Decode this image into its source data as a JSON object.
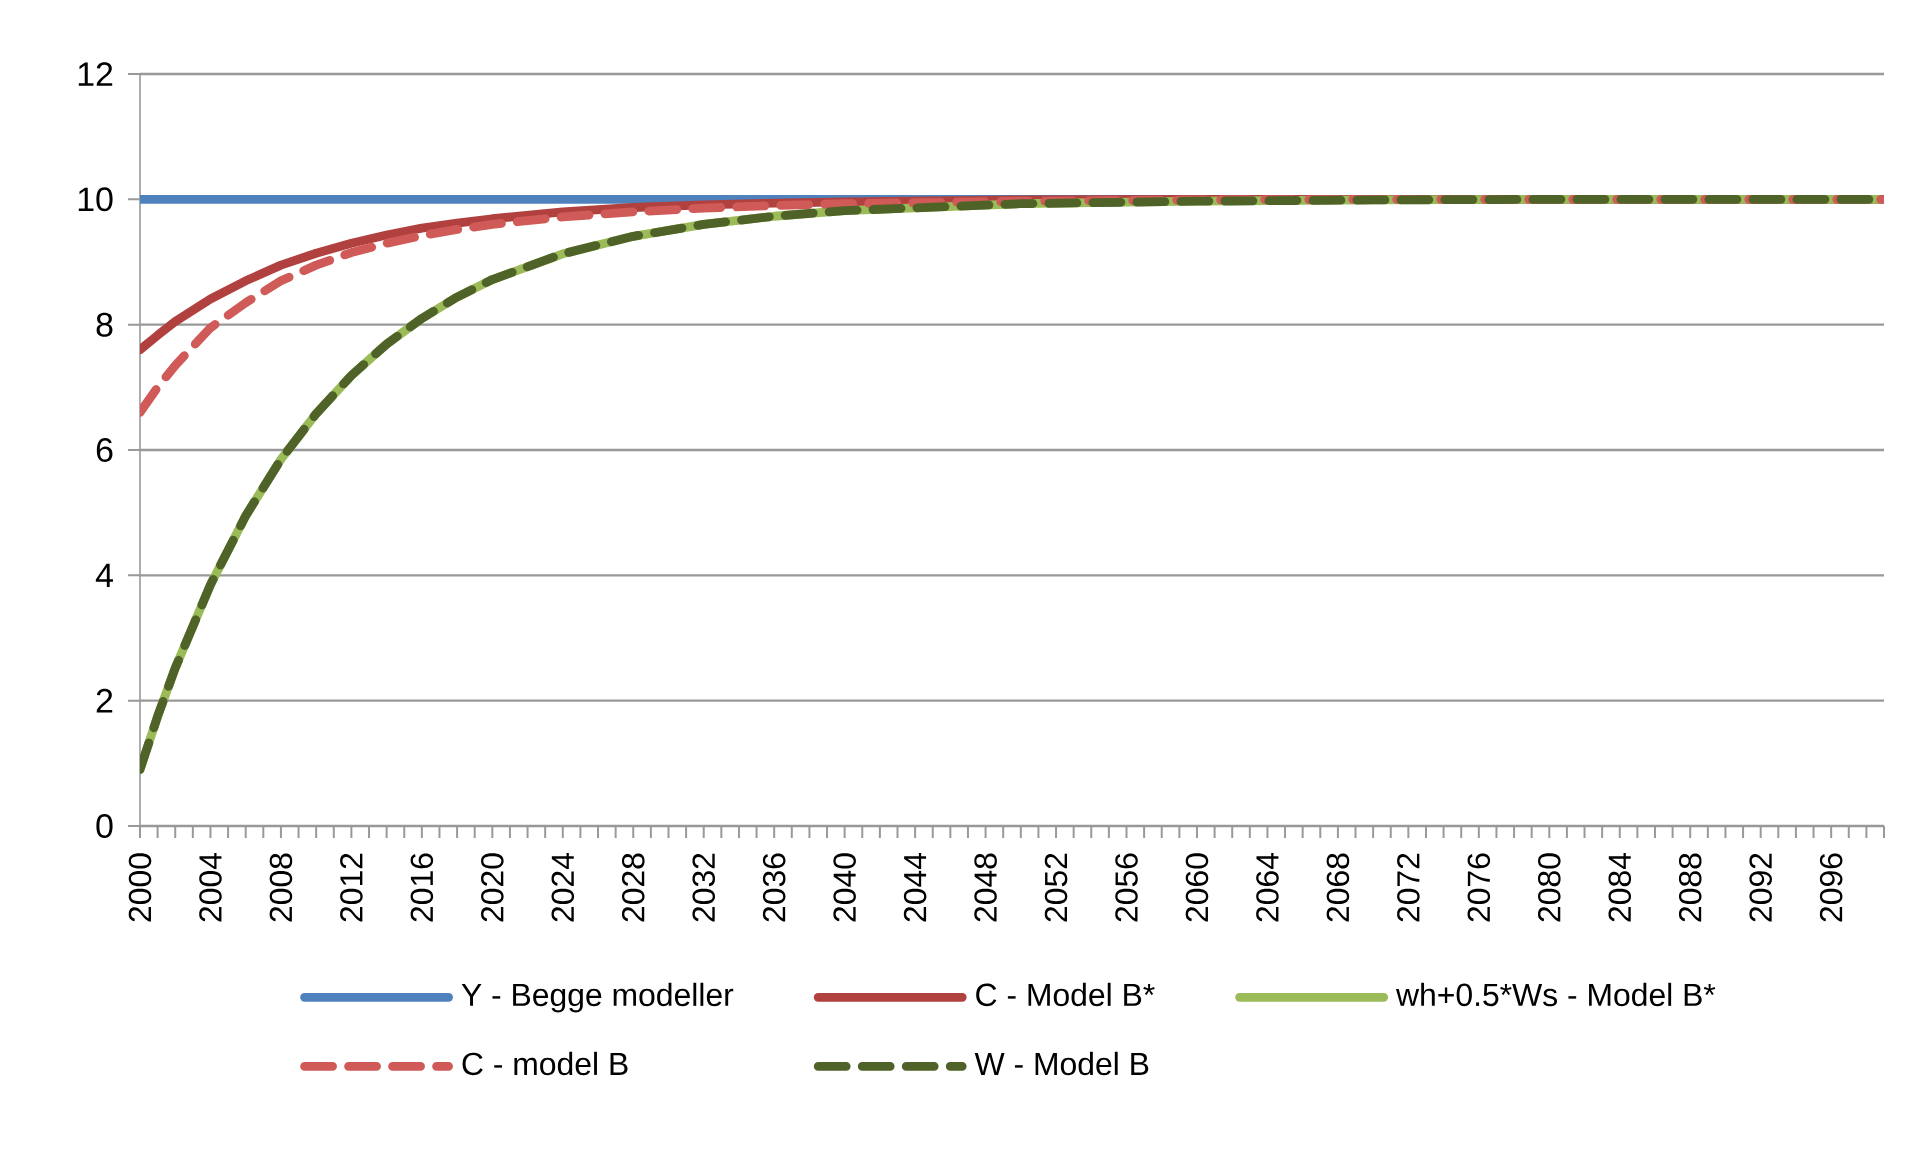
{
  "chart_data": {
    "type": "line",
    "x": [
      2000,
      2001,
      2002,
      2004,
      2006,
      2008,
      2010,
      2012,
      2014,
      2016,
      2018,
      2020,
      2024,
      2028,
      2032,
      2036,
      2040,
      2050,
      2060,
      2070,
      2080,
      2090,
      2099
    ],
    "series": [
      {
        "name": "Y - Begge modeller",
        "color": "#4f81bd",
        "line_style": "solid",
        "values": [
          10,
          10,
          10,
          10,
          10,
          10,
          10,
          10,
          10,
          10,
          10,
          10,
          10,
          10,
          10,
          10,
          10,
          10,
          10,
          null,
          null,
          null,
          null
        ]
      },
      {
        "name": "C - Model B*",
        "color": "#b0413e",
        "line_style": "solid",
        "values": [
          7.6,
          7.83,
          8.05,
          8.41,
          8.7,
          8.95,
          9.14,
          9.3,
          9.43,
          9.54,
          9.62,
          9.69,
          9.8,
          9.87,
          9.91,
          9.94,
          9.96,
          9.99,
          10,
          10,
          10,
          10,
          10
        ]
      },
      {
        "name": "wh+0.5*Ws - Model B*",
        "color": "#9bbb59",
        "line_style": "solid",
        "values": [
          0.9,
          1.75,
          2.52,
          3.85,
          4.95,
          5.85,
          6.58,
          7.19,
          7.69,
          8.1,
          8.44,
          8.72,
          9.13,
          9.41,
          9.6,
          9.73,
          9.82,
          9.93,
          9.97,
          9.99,
          10,
          10,
          10
        ]
      },
      {
        "name": "C - model B",
        "color": "#d05a57",
        "line_style": "dashed",
        "values": [
          6.6,
          7.0,
          7.35,
          7.95,
          8.35,
          8.7,
          8.95,
          9.15,
          9.3,
          9.42,
          9.52,
          9.6,
          9.72,
          9.8,
          9.86,
          9.9,
          9.93,
          9.97,
          9.99,
          10,
          10,
          10,
          10
        ]
      },
      {
        "name": "W - Model B",
        "color": "#4f6228",
        "line_style": "dashed",
        "values": [
          0.9,
          1.75,
          2.52,
          3.85,
          4.95,
          5.85,
          6.58,
          7.19,
          7.69,
          8.1,
          8.44,
          8.72,
          9.13,
          9.41,
          9.6,
          9.73,
          9.82,
          9.93,
          9.97,
          9.99,
          10,
          10,
          10
        ]
      }
    ],
    "xlim": [
      2000,
      2099
    ],
    "xticks": [
      2000,
      {
        "value": 2001,
        "label": null
      },
      {
        "value": 2002,
        "label": null
      },
      {
        "value": 2003,
        "label": null
      },
      2004,
      {
        "value": 2005,
        "label": null
      },
      {
        "value": 2006,
        "label": null
      },
      {
        "value": 2007,
        "label": null
      },
      2008,
      {
        "value": 2009,
        "label": null
      },
      {
        "value": 2010,
        "label": null
      },
      {
        "value": 2011,
        "label": null
      },
      2012,
      {
        "value": 2013,
        "label": null
      },
      {
        "value": 2014,
        "label": null
      },
      {
        "value": 2015,
        "label": null
      },
      2016,
      {
        "value": 2017,
        "label": null
      },
      {
        "value": 2018,
        "label": null
      },
      {
        "value": 2019,
        "label": null
      },
      2020,
      {
        "value": 2021,
        "label": null
      },
      {
        "value": 2022,
        "label": null
      },
      {
        "value": 2023,
        "label": null
      },
      2024,
      {
        "value": 2025,
        "label": null
      },
      {
        "value": 2026,
        "label": null
      },
      {
        "value": 2027,
        "label": null
      },
      2028,
      {
        "value": 2029,
        "label": null
      },
      {
        "value": 2030,
        "label": null
      },
      {
        "value": 2031,
        "label": null
      },
      2032,
      {
        "value": 2033,
        "label": null
      },
      {
        "value": 2034,
        "label": null
      },
      {
        "value": 2035,
        "label": null
      },
      2036,
      {
        "value": 2037,
        "label": null
      },
      {
        "value": 2038,
        "label": null
      },
      {
        "value": 2039,
        "label": null
      },
      2040,
      {
        "value": 2041,
        "label": null
      },
      {
        "value": 2042,
        "label": null
      },
      {
        "value": 2043,
        "label": null
      },
      2044,
      {
        "value": 2045,
        "label": null
      },
      {
        "value": 2046,
        "label": null
      },
      {
        "value": 2047,
        "label": null
      },
      2048,
      {
        "value": 2049,
        "label": null
      },
      {
        "value": 2050,
        "label": null
      },
      {
        "value": 2051,
        "label": null
      },
      2052,
      {
        "value": 2053,
        "label": null
      },
      {
        "value": 2054,
        "label": null
      },
      {
        "value": 2055,
        "label": null
      },
      2056,
      {
        "value": 2057,
        "label": null
      },
      {
        "value": 2058,
        "label": null
      },
      {
        "value": 2059,
        "label": null
      },
      2060,
      {
        "value": 2061,
        "label": null
      },
      {
        "value": 2062,
        "label": null
      },
      {
        "value": 2063,
        "label": null
      },
      2064,
      {
        "value": 2065,
        "label": null
      },
      {
        "value": 2066,
        "label": null
      },
      {
        "value": 2067,
        "label": null
      },
      2068,
      {
        "value": 2069,
        "label": null
      },
      {
        "value": 2070,
        "label": null
      },
      {
        "value": 2071,
        "label": null
      },
      2072,
      {
        "value": 2073,
        "label": null
      },
      {
        "value": 2074,
        "label": null
      },
      {
        "value": 2075,
        "label": null
      },
      2076,
      {
        "value": 2077,
        "label": null
      },
      {
        "value": 2078,
        "label": null
      },
      {
        "value": 2079,
        "label": null
      },
      2080,
      {
        "value": 2081,
        "label": null
      },
      {
        "value": 2082,
        "label": null
      },
      {
        "value": 2083,
        "label": null
      },
      2084,
      {
        "value": 2085,
        "label": null
      },
      {
        "value": 2086,
        "label": null
      },
      {
        "value": 2087,
        "label": null
      },
      2088,
      {
        "value": 2089,
        "label": null
      },
      {
        "value": 2090,
        "label": null
      },
      {
        "value": 2091,
        "label": null
      },
      2092,
      {
        "value": 2093,
        "label": null
      },
      {
        "value": 2094,
        "label": null
      },
      {
        "value": 2095,
        "label": null
      },
      2096,
      {
        "value": 2097,
        "label": null
      },
      {
        "value": 2098,
        "label": null
      },
      {
        "value": 2099,
        "label": null
      }
    ],
    "ylim": [
      0,
      12
    ],
    "yticks": [
      0,
      2,
      4,
      6,
      8,
      10,
      12
    ],
    "grid": "y",
    "legend": "bottom"
  }
}
